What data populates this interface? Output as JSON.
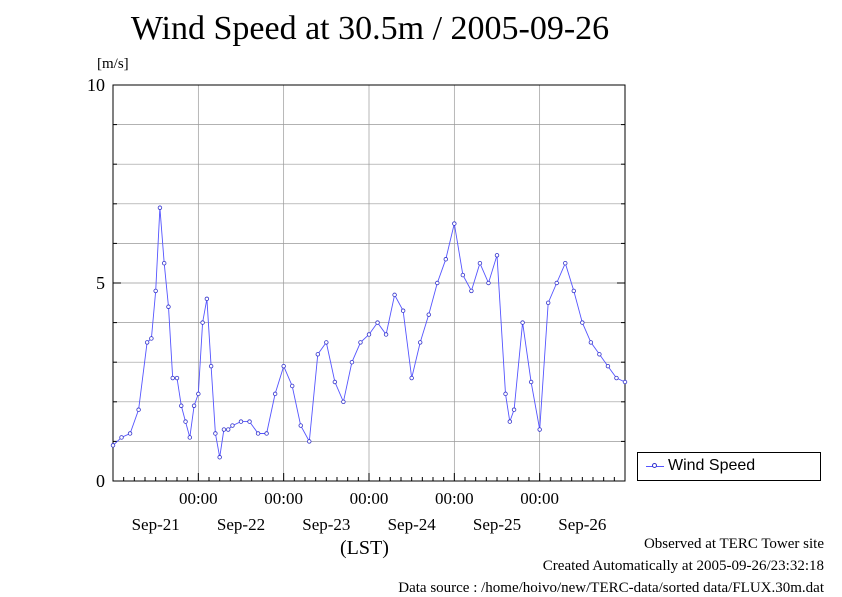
{
  "chart_data": {
    "type": "line",
    "title": "Wind Speed at 30.5m / 2005-09-26",
    "ylabel": "[m/s]",
    "xlabel": "(LST)",
    "ylim": [
      0,
      10
    ],
    "yticks": [
      0,
      5,
      10
    ],
    "xlim": [
      0,
      6
    ],
    "time_ticks": [
      {
        "x": 1,
        "label": "00:00"
      },
      {
        "x": 2,
        "label": "00:00"
      },
      {
        "x": 3,
        "label": "00:00"
      },
      {
        "x": 4,
        "label": "00:00"
      },
      {
        "x": 5,
        "label": "00:00"
      }
    ],
    "day_labels": [
      {
        "x": 0.5,
        "label": "Sep-21"
      },
      {
        "x": 1.5,
        "label": "Sep-22"
      },
      {
        "x": 2.5,
        "label": "Sep-23"
      },
      {
        "x": 3.5,
        "label": "Sep-24"
      },
      {
        "x": 4.5,
        "label": "Sep-25"
      },
      {
        "x": 5.5,
        "label": "Sep-26"
      }
    ],
    "grid": true,
    "legend_position": "right",
    "series": [
      {
        "name": "Wind Speed",
        "color": "#3333cc",
        "x": [
          0,
          0.1,
          0.2,
          0.3,
          0.4,
          0.45,
          0.5,
          0.55,
          0.6,
          0.65,
          0.7,
          0.75,
          0.8,
          0.85,
          0.9,
          0.95,
          1.0,
          1.05,
          1.1,
          1.15,
          1.2,
          1.25,
          1.3,
          1.35,
          1.4,
          1.5,
          1.6,
          1.7,
          1.8,
          1.9,
          2.0,
          2.1,
          2.2,
          2.3,
          2.4,
          2.5,
          2.6,
          2.7,
          2.8,
          2.9,
          3.0,
          3.1,
          3.2,
          3.3,
          3.4,
          3.5,
          3.6,
          3.7,
          3.8,
          3.9,
          4.0,
          4.1,
          4.2,
          4.3,
          4.4,
          4.5,
          4.6,
          4.65,
          4.7,
          4.8,
          4.9,
          5.0,
          5.1,
          5.2,
          5.3,
          5.4,
          5.5,
          5.6,
          5.7,
          5.8,
          5.9,
          6.0
        ],
        "y": [
          0.9,
          1.1,
          1.2,
          1.8,
          3.5,
          3.6,
          4.8,
          6.9,
          5.5,
          4.4,
          2.6,
          2.6,
          1.9,
          1.5,
          1.1,
          1.9,
          2.2,
          4.0,
          4.6,
          2.9,
          1.2,
          0.6,
          1.3,
          1.3,
          1.4,
          1.5,
          1.5,
          1.2,
          1.2,
          2.2,
          2.9,
          2.4,
          1.4,
          1.0,
          3.2,
          3.5,
          2.5,
          2.0,
          3.0,
          3.5,
          3.7,
          4.0,
          3.7,
          4.7,
          4.3,
          2.6,
          3.5,
          4.2,
          5.0,
          5.6,
          6.5,
          5.2,
          4.8,
          5.5,
          5.0,
          5.7,
          2.2,
          1.5,
          1.8,
          4.0,
          2.5,
          1.3,
          4.5,
          5.0,
          5.5,
          4.8,
          4.0,
          3.5,
          3.2,
          2.9,
          2.6,
          2.5
        ]
      }
    ]
  },
  "footer": {
    "line1": "Observed at TERC Tower site",
    "line2": "Created Automatically at 2005-09-26/23:32:18",
    "line3": "Data source : /home/hoivo/new/TERC-data/sorted  data/FLUX.30m.dat"
  }
}
